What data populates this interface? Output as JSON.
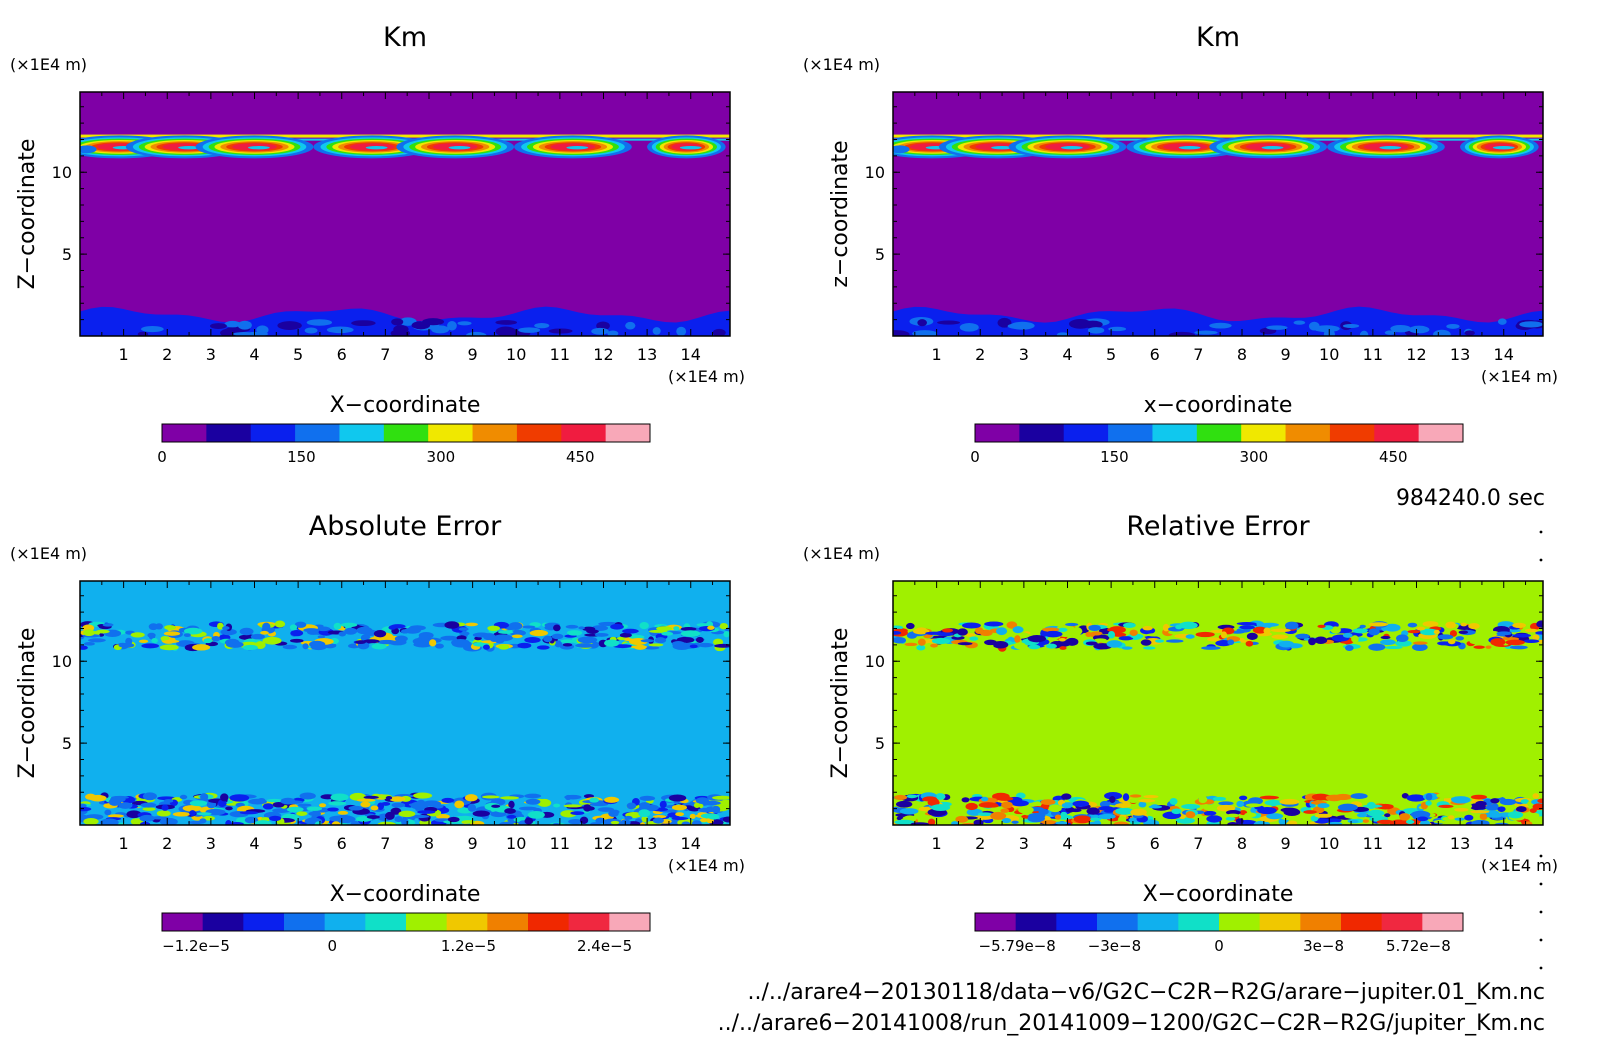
{
  "panels": [
    {
      "title": "Km",
      "xlabel": "X−coordinate",
      "ylabel": "Z−coordinate",
      "x_unit": "(×1E4 m)",
      "y_unit": "(×1E4 m)",
      "x_ticks": [
        "1",
        "2",
        "3",
        "4",
        "5",
        "6",
        "7",
        "8",
        "9",
        "10",
        "11",
        "12",
        "13",
        "14"
      ],
      "y_ticks": [
        "5",
        "10"
      ],
      "colorbar_labels": [
        "0",
        "150",
        "300",
        "450"
      ],
      "colorbar_label_positions": [
        0,
        150,
        300,
        450
      ],
      "colorbar_range": [
        0,
        525
      ]
    },
    {
      "title": "Km",
      "xlabel": "x−coordinate",
      "ylabel": "z−coordinate",
      "x_unit": "(×1E4 m)",
      "y_unit": "(×1E4 m)",
      "x_ticks": [
        "1",
        "2",
        "3",
        "4",
        "5",
        "6",
        "7",
        "8",
        "9",
        "10",
        "11",
        "12",
        "13",
        "14"
      ],
      "y_ticks": [
        "5",
        "10"
      ],
      "colorbar_labels": [
        "0",
        "150",
        "300",
        "450"
      ],
      "colorbar_label_positions": [
        0,
        150,
        300,
        450
      ],
      "colorbar_range": [
        0,
        525
      ]
    },
    {
      "title": "Absolute Error",
      "xlabel": "X−coordinate",
      "ylabel": "Z−coordinate",
      "x_unit": "(×1E4 m)",
      "y_unit": "(×1E4 m)",
      "x_ticks": [
        "1",
        "2",
        "3",
        "4",
        "5",
        "6",
        "7",
        "8",
        "9",
        "10",
        "11",
        "12",
        "13",
        "14"
      ],
      "y_ticks": [
        "5",
        "10"
      ],
      "colorbar_labels": [
        "−1.2e−5",
        "0",
        "1.2e−5",
        "2.4e−5"
      ],
      "colorbar_label_positions": [
        -1.2e-05,
        0,
        1.2e-05,
        2.4e-05
      ],
      "colorbar_range": [
        -1.5e-05,
        2.8e-05
      ]
    },
    {
      "title": "Relative Error",
      "xlabel": "X−coordinate",
      "ylabel": "Z−coordinate",
      "x_unit": "(×1E4 m)",
      "y_unit": "(×1E4 m)",
      "x_ticks": [
        "1",
        "2",
        "3",
        "4",
        "5",
        "6",
        "7",
        "8",
        "9",
        "10",
        "11",
        "12",
        "13",
        "14"
      ],
      "y_ticks": [
        "5",
        "10"
      ],
      "colorbar_labels": [
        "−5.79e−8",
        "−3e−8",
        "0",
        "3e−8",
        "5.72e−8"
      ],
      "colorbar_label_positions": [
        -5.79e-08,
        -3e-08,
        0,
        3e-08,
        5.72e-08
      ],
      "colorbar_range": [
        -7e-08,
        7e-08
      ]
    }
  ],
  "time_label": "984240.0 sec",
  "file_paths": [
    "../../arare4−20130118/data−v6/G2C−C2R−R2G/arare−jupiter.01_Km.nc",
    "../../arare6−20141008/run_20141009−1200/G2C−C2R−R2G/jupiter_Km.nc"
  ],
  "colormaps": {
    "km": [
      "#7f00a6",
      "#1a00a0",
      "#0a20ee",
      "#1070ee",
      "#10c8ee",
      "#30e010",
      "#f0e800",
      "#f08c00",
      "#f03c00",
      "#f01c40",
      "#f8a8b8"
    ],
    "abs": [
      "#7f00a6",
      "#1a00a0",
      "#0a20ee",
      "#1070ee",
      "#10b0ee",
      "#10e0c8",
      "#a0f000",
      "#f0c800",
      "#f08000",
      "#f02800",
      "#f02840",
      "#f8a8b8"
    ],
    "rel": [
      "#7f00a6",
      "#1a00a0",
      "#0a20ee",
      "#1070ee",
      "#10b0ee",
      "#10e0c8",
      "#a0f000",
      "#f0c800",
      "#f08000",
      "#f02800",
      "#f02840",
      "#f8a8b8"
    ]
  },
  "chart_data": [
    {
      "type": "heatmap",
      "title": "Km",
      "xlabel": "X−coordinate",
      "ylabel": "Z−coordinate",
      "xlim": [
        0,
        14.9
      ],
      "ylim": [
        0,
        14.9
      ],
      "colorbar_range": [
        0,
        525
      ],
      "background_value": 0,
      "features": [
        {
          "name": "turbulent-layer",
          "z_range": [
            10.8,
            12.3
          ],
          "values_range": [
            0,
            500
          ]
        },
        {
          "name": "lower-layer",
          "z_range": [
            0,
            1.8
          ],
          "values_range": [
            50,
            150
          ]
        }
      ]
    },
    {
      "type": "heatmap",
      "title": "Km",
      "xlabel": "x−coordinate",
      "ylabel": "z−coordinate",
      "xlim": [
        0,
        14.9
      ],
      "ylim": [
        0,
        14.9
      ],
      "colorbar_range": [
        0,
        525
      ],
      "background_value": 0,
      "features": [
        {
          "name": "turbulent-layer",
          "z_range": [
            10.8,
            12.3
          ],
          "values_range": [
            0,
            500
          ]
        },
        {
          "name": "lower-layer",
          "z_range": [
            0,
            1.8
          ],
          "values_range": [
            50,
            150
          ]
        }
      ]
    },
    {
      "type": "heatmap",
      "title": "Absolute Error",
      "xlabel": "X−coordinate",
      "ylabel": "Z−coordinate",
      "xlim": [
        0,
        14.9
      ],
      "ylim": [
        0,
        14.9
      ],
      "colorbar_range": [
        -1.5e-05,
        2.8e-05
      ],
      "background_value": 0,
      "features": [
        {
          "name": "upper-noise",
          "z_range": [
            10.8,
            12.3
          ]
        },
        {
          "name": "lower-noise",
          "z_range": [
            0,
            1.8
          ]
        }
      ]
    },
    {
      "type": "heatmap",
      "title": "Relative Error",
      "xlabel": "X−coordinate",
      "ylabel": "Z−coordinate",
      "xlim": [
        0,
        14.9
      ],
      "ylim": [
        0,
        14.9
      ],
      "colorbar_range": [
        -7e-08,
        7e-08
      ],
      "background_value": 0,
      "features": [
        {
          "name": "upper-noise",
          "z_range": [
            10.8,
            12.3
          ]
        },
        {
          "name": "lower-noise",
          "z_range": [
            0,
            1.8
          ]
        }
      ]
    }
  ]
}
